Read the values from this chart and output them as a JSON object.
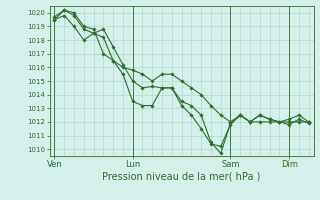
{
  "background_color": "#d4f0eb",
  "grid_color": "#b0d8d0",
  "line_color": "#2d6e2d",
  "marker_color": "#2d6e2d",
  "xlabel": "Pression niveau de la mer( hPa )",
  "ylim": [
    1009.5,
    1020.5
  ],
  "yticks": [
    1010,
    1011,
    1012,
    1013,
    1014,
    1015,
    1016,
    1017,
    1018,
    1019,
    1020
  ],
  "xtick_labels": [
    "Ven",
    "Lun",
    "Sam",
    "Dim"
  ],
  "xtick_positions": [
    0,
    8,
    18,
    24
  ],
  "vline_positions": [
    0,
    8,
    18,
    24
  ],
  "series1": [
    1019.5,
    1019.8,
    1019.0,
    1018.0,
    1018.5,
    1018.2,
    1016.5,
    1015.5,
    1013.5,
    1013.2,
    1013.2,
    1014.5,
    1014.5,
    1013.2,
    1012.5,
    1011.5,
    1010.4,
    1010.2,
    1011.8,
    1012.5,
    1012.0,
    1012.5,
    1012.2,
    1012.0,
    1011.8,
    1012.2,
    1011.9
  ],
  "series2": [
    1019.7,
    1020.2,
    1019.8,
    1018.8,
    1018.5,
    1018.8,
    1017.5,
    1016.2,
    1015.0,
    1014.5,
    1014.6,
    1014.5,
    1014.5,
    1013.5,
    1013.2,
    1012.5,
    1010.5,
    1009.7,
    1011.9,
    1012.5,
    1012.0,
    1012.5,
    1012.2,
    1012.0,
    1012.2,
    1012.5,
    1012.0
  ],
  "series3": [
    1019.5,
    1020.2,
    1020.0,
    1019.0,
    1018.8,
    1017.0,
    1016.5,
    1016.0,
    1015.8,
    1015.5,
    1015.0,
    1015.5,
    1015.5,
    1015.0,
    1014.5,
    1014.0,
    1013.2,
    1012.5,
    1012.0,
    1012.5,
    1012.0,
    1012.0,
    1012.0,
    1012.0,
    1012.0,
    1012.0,
    1012.0
  ],
  "ylabel_fontsize": 5.0,
  "xlabel_fontsize": 7.0,
  "xtick_fontsize": 6.0,
  "linewidth": 0.8,
  "markersize": 1.8
}
